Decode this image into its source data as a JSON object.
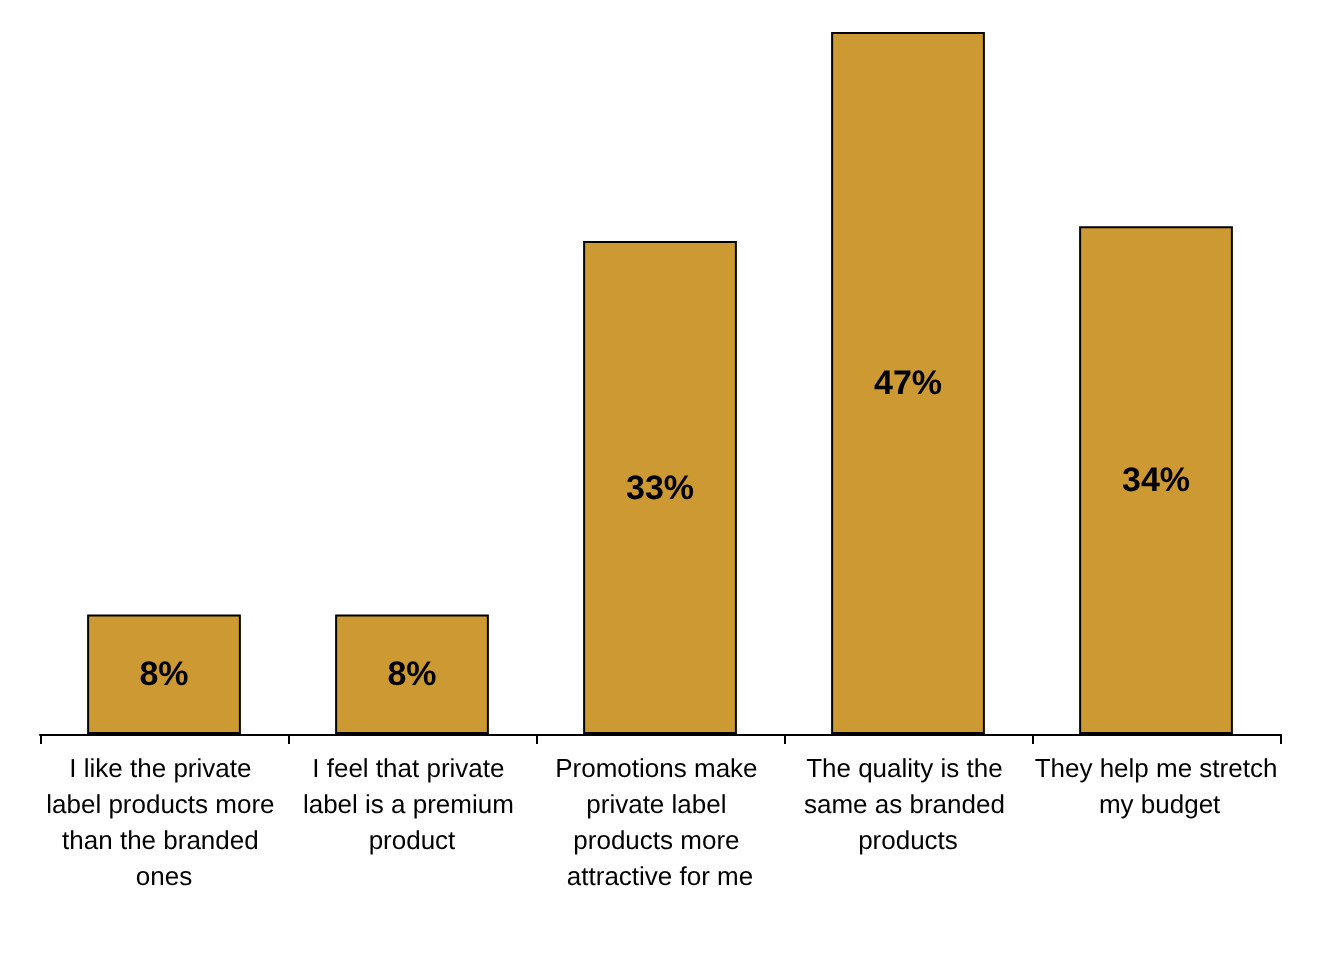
{
  "chart_data": {
    "type": "bar",
    "categories": [
      "I like the private label products more than the branded ones",
      "I feel that private label is a premium product",
      "Promotions make private label products more attractive for me",
      "The quality is the same as branded products",
      "They help me stretch my budget"
    ],
    "values": [
      8,
      8,
      33,
      47,
      34
    ],
    "value_labels": [
      "8%",
      "8%",
      "33%",
      "47%",
      "34%"
    ],
    "color": "#cc9933"
  }
}
